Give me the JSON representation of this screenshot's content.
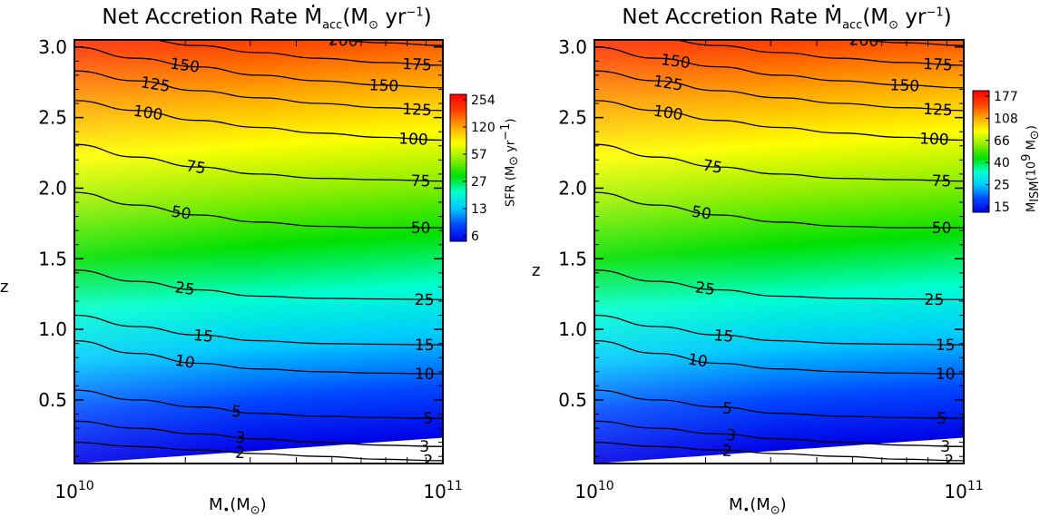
{
  "chart_data": [
    {
      "type": "heatmap",
      "title_prefix": "Net Accretion Rate ",
      "title_symbol": "M",
      "title_sub": "acc",
      "title_units": "(M",
      "title_sun": "⊙",
      "title_units2": " yr",
      "title_exp": "−1",
      "title_close": ")",
      "xlabel": "M•(M⊙)",
      "xlabel_main": "M",
      "xlabel_sub": "•",
      "xlabel_units": "(M",
      "xlabel_sun": "⊙",
      "xlabel_close": ")",
      "ylabel": "z",
      "x_scale": "log",
      "xlim": [
        10000000000.0,
        100000000000.0
      ],
      "ylim": [
        0.05,
        3.05
      ],
      "x_ticks": [
        {
          "value": 10000000000.0,
          "base": "10",
          "exp": "10"
        },
        {
          "value": 100000000000.0,
          "base": "10",
          "exp": "11"
        }
      ],
      "y_ticks": [
        "0.5",
        "1.0",
        "1.5",
        "2.0",
        "2.5",
        "3.0"
      ],
      "y_tick_values": [
        0.5,
        1.0,
        1.5,
        2.0,
        2.5,
        3.0
      ],
      "contours": [
        {
          "level": "2",
          "y": [
            0.2,
            0.17,
            0.145,
            0.12,
            0.1,
            0.08,
            0.07
          ],
          "label_left_x": 0.45,
          "label_right_x": 0.96
        },
        {
          "level": "3",
          "y": [
            0.35,
            0.3,
            0.26,
            0.225,
            0.2,
            0.18,
            0.17
          ],
          "label_left_x": 0.45,
          "label_right_x": 0.95
        },
        {
          "level": "5",
          "y": [
            0.57,
            0.5,
            0.45,
            0.405,
            0.385,
            0.375,
            0.37
          ],
          "label_left_x": 0.44,
          "label_right_x": 0.96
        },
        {
          "level": "10",
          "y": [
            0.92,
            0.83,
            0.76,
            0.72,
            0.7,
            0.69,
            0.685
          ],
          "label_left_x": 0.3,
          "label_right_x": 0.95
        },
        {
          "level": "15",
          "y": [
            1.1,
            1.02,
            0.96,
            0.92,
            0.9,
            0.895,
            0.89
          ],
          "label_left_x": 0.35,
          "label_right_x": 0.95
        },
        {
          "level": "25",
          "y": [
            1.42,
            1.34,
            1.28,
            1.235,
            1.22,
            1.215,
            1.21
          ],
          "label_left_x": 0.3,
          "label_right_x": 0.95
        },
        {
          "level": "50",
          "y": [
            1.97,
            1.88,
            1.81,
            1.76,
            1.73,
            1.72,
            1.72
          ],
          "label_left_x": 0.29,
          "label_right_x": 0.94
        },
        {
          "level": "75",
          "y": [
            2.31,
            2.22,
            2.15,
            2.1,
            2.07,
            2.06,
            2.05
          ],
          "label_left_x": 0.33,
          "label_right_x": 0.94
        },
        {
          "level": "100",
          "y": [
            2.62,
            2.55,
            2.48,
            2.43,
            2.39,
            2.36,
            2.34
          ],
          "label_left_x": 0.2,
          "label_right_x": 0.92
        },
        {
          "level": "125",
          "y": [
            2.83,
            2.76,
            2.69,
            2.64,
            2.6,
            2.57,
            2.55
          ],
          "label_left_x": 0.22,
          "label_right_x": 0.93
        },
        {
          "level": "150",
          "y": [
            3.0,
            2.92,
            2.86,
            2.8,
            2.76,
            2.73,
            2.71
          ],
          "label_left_x": 0.3,
          "label_right_x": 0.84
        },
        {
          "level": "175",
          "y": [
            3.1,
            3.06,
            3.01,
            2.96,
            2.92,
            2.89,
            2.87
          ],
          "label_left_x": null,
          "label_right_x": 0.93
        },
        {
          "level": "200",
          "y": [
            3.2,
            3.16,
            3.12,
            3.09,
            3.06,
            3.03,
            3.01
          ],
          "label_left_x": null,
          "label_right_x": 0.73
        }
      ],
      "colorbar": {
        "ticks": [
          "254",
          "120",
          "57",
          "27",
          "13",
          "6"
        ],
        "title_main": "SFR (M",
        "title_sun": "⊙",
        "title_units": " yr",
        "title_exp": "−1",
        "title_close": ")"
      },
      "colormap": [
        "#0000e6",
        "#0047ff",
        "#00c8ff",
        "#00ffd0",
        "#00e000",
        "#8cee00",
        "#ffff00",
        "#ffa500",
        "#ff4000",
        "#ff0000"
      ]
    },
    {
      "type": "heatmap",
      "title_prefix": "Net Accretion Rate ",
      "title_symbol": "M",
      "title_sub": "acc",
      "title_units": "(M",
      "title_sun": "⊙",
      "title_units2": " yr",
      "title_exp": "−1",
      "title_close": ")",
      "xlabel": "M•(M⊙)",
      "xlabel_main": "M",
      "xlabel_sub": "•",
      "xlabel_units": "(M",
      "xlabel_sun": "⊙",
      "xlabel_close": ")",
      "ylabel": "z",
      "x_scale": "log",
      "xlim": [
        10000000000.0,
        100000000000.0
      ],
      "ylim": [
        0.05,
        3.05
      ],
      "x_ticks": [
        {
          "value": 10000000000.0,
          "base": "10",
          "exp": "10"
        },
        {
          "value": 100000000000.0,
          "base": "10",
          "exp": "11"
        }
      ],
      "y_ticks": [
        "0.5",
        "1.0",
        "1.5",
        "2.0",
        "2.5",
        "3.0"
      ],
      "y_tick_values": [
        0.5,
        1.0,
        1.5,
        2.0,
        2.5,
        3.0
      ],
      "contours": [
        {
          "level": "2",
          "y": [
            0.2,
            0.17,
            0.145,
            0.12,
            0.1,
            0.08,
            0.07
          ],
          "label_left_x": 0.36,
          "label_right_x": 0.96
        },
        {
          "level": "3",
          "y": [
            0.35,
            0.3,
            0.26,
            0.225,
            0.2,
            0.18,
            0.17
          ],
          "label_left_x": 0.37,
          "label_right_x": 0.95
        },
        {
          "level": "5",
          "y": [
            0.57,
            0.5,
            0.45,
            0.405,
            0.385,
            0.375,
            0.37
          ],
          "label_left_x": 0.36,
          "label_right_x": 0.94
        },
        {
          "level": "10",
          "y": [
            0.92,
            0.83,
            0.76,
            0.72,
            0.7,
            0.69,
            0.685
          ],
          "label_left_x": 0.28,
          "label_right_x": 0.95
        },
        {
          "level": "15",
          "y": [
            1.1,
            1.02,
            0.96,
            0.92,
            0.9,
            0.895,
            0.89
          ],
          "label_left_x": 0.35,
          "label_right_x": 0.95
        },
        {
          "level": "25",
          "y": [
            1.42,
            1.34,
            1.28,
            1.235,
            1.22,
            1.215,
            1.21
          ],
          "label_left_x": 0.3,
          "label_right_x": 0.92
        },
        {
          "level": "50",
          "y": [
            1.97,
            1.88,
            1.81,
            1.76,
            1.73,
            1.72,
            1.72
          ],
          "label_left_x": 0.29,
          "label_right_x": 0.94
        },
        {
          "level": "75",
          "y": [
            2.31,
            2.22,
            2.15,
            2.1,
            2.07,
            2.06,
            2.05
          ],
          "label_left_x": 0.32,
          "label_right_x": 0.94
        },
        {
          "level": "100",
          "y": [
            2.62,
            2.55,
            2.48,
            2.43,
            2.39,
            2.36,
            2.34
          ],
          "label_left_x": 0.2,
          "label_right_x": 0.92
        },
        {
          "level": "125",
          "y": [
            2.83,
            2.76,
            2.69,
            2.64,
            2.6,
            2.57,
            2.55
          ],
          "label_left_x": 0.2,
          "label_right_x": 0.93
        },
        {
          "level": "150",
          "y": [
            3.0,
            2.92,
            2.86,
            2.8,
            2.76,
            2.73,
            2.71
          ],
          "label_left_x": 0.22,
          "label_right_x": 0.84
        },
        {
          "level": "175",
          "y": [
            3.1,
            3.06,
            3.01,
            2.96,
            2.92,
            2.89,
            2.87
          ],
          "label_left_x": null,
          "label_right_x": 0.93
        },
        {
          "level": "200",
          "y": [
            3.2,
            3.16,
            3.12,
            3.09,
            3.06,
            3.03,
            3.01
          ],
          "label_left_x": null,
          "label_right_x": 0.73
        }
      ],
      "colorbar": {
        "ticks": [
          "177",
          "108",
          "66",
          "40",
          "25",
          "15"
        ],
        "title_main": "M",
        "title_sub": "ISM",
        "title_units": "(10",
        "title_exp": "9",
        "title_units2": " M",
        "title_sun": "⊙",
        "title_close": ")"
      },
      "colormap": [
        "#0000e6",
        "#0047ff",
        "#00c8ff",
        "#00ffd0",
        "#00e000",
        "#8cee00",
        "#ffff00",
        "#ffa500",
        "#ff4000",
        "#ff0000"
      ]
    }
  ]
}
